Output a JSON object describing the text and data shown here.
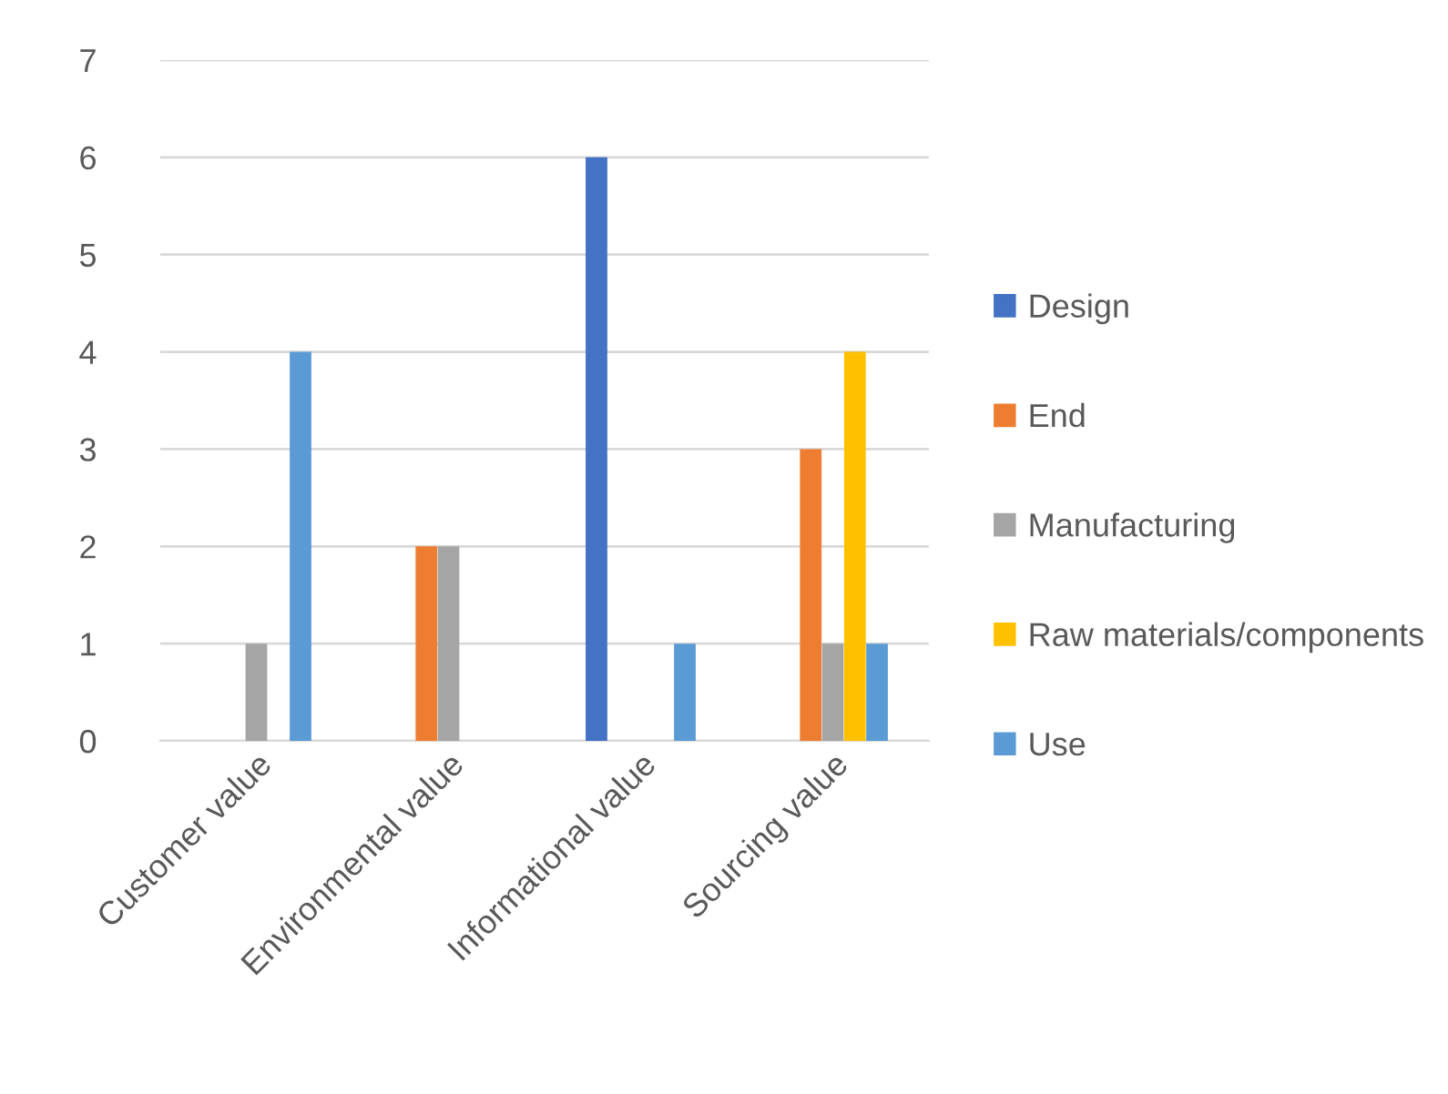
{
  "chart_data": {
    "type": "bar",
    "categories": [
      "Customer value",
      "Environmental value",
      "Informational value",
      "Sourcing value"
    ],
    "series": [
      {
        "name": "Design",
        "color": "#4472c4",
        "values": [
          0,
          0,
          6,
          0
        ]
      },
      {
        "name": "End",
        "color": "#ed7d31",
        "values": [
          0,
          2,
          0,
          3
        ]
      },
      {
        "name": "Manufacturing",
        "color": "#a5a5a5",
        "values": [
          1,
          2,
          0,
          1
        ]
      },
      {
        "name": "Raw materials/components",
        "color": "#ffc000",
        "values": [
          0,
          0,
          0,
          4
        ]
      },
      {
        "name": "Use",
        "color": "#5b9bd5",
        "values": [
          4,
          0,
          1,
          1
        ]
      }
    ],
    "ylim": [
      0,
      7
    ],
    "yticks": [
      0,
      1,
      2,
      3,
      4,
      5,
      6,
      7
    ],
    "grid": "y",
    "legend": "right"
  }
}
